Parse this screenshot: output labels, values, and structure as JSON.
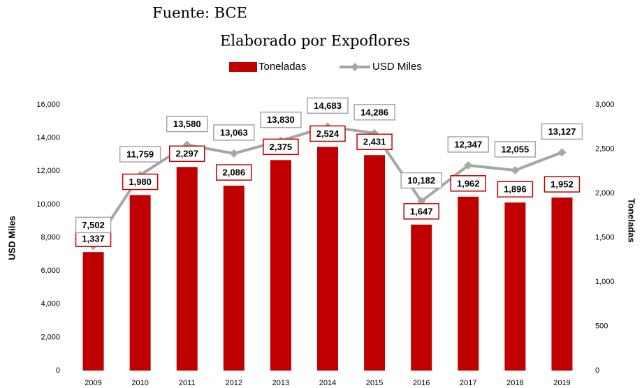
{
  "chart_data": {
    "type": "bar_line",
    "title": "Fuente: BCE",
    "subtitle": "Elaborado por Expoflores",
    "categories": [
      "2009",
      "2010",
      "2011",
      "2012",
      "2013",
      "2014",
      "2015",
      "2016",
      "2017",
      "2018",
      "2019"
    ],
    "series": [
      {
        "name": "Toneladas",
        "type": "bar",
        "axis": "y2",
        "color": "#c00000",
        "values": [
          1337,
          1980,
          2297,
          2086,
          2375,
          2524,
          2431,
          1647,
          1962,
          1896,
          1952
        ],
        "value_labels": [
          "1,337",
          "1,980",
          "2,297",
          "2,086",
          "2,375",
          "2,524",
          "2,431",
          "1,647",
          "1,962",
          "1,896",
          "1,952"
        ]
      },
      {
        "name": "USD Miles",
        "type": "line",
        "axis": "y",
        "color": "#a6a6a6",
        "values": [
          7502,
          11759,
          13580,
          13063,
          13830,
          14683,
          14286,
          10182,
          12347,
          12055,
          13127
        ],
        "value_labels": [
          "7,502",
          "11,759",
          "13,580",
          "13,063",
          "13,830",
          "14,683",
          "14,286",
          "10,182",
          "12,347",
          "12,055",
          "13,127"
        ]
      }
    ],
    "ylabel": "USD Miles",
    "y2label": "Toneladas",
    "ylim": [
      0,
      16000
    ],
    "yticks": [
      0,
      {
        "value": 2000,
        "label": "2,000"
      },
      {
        "value": 4000,
        "label": "4,000"
      },
      {
        "value": 6000,
        "label": "6,000"
      },
      {
        "value": 8000,
        "label": "8,000"
      },
      {
        "value": 10000,
        "label": "10,000"
      },
      {
        "value": 12000,
        "label": "12,000"
      },
      {
        "value": 14000,
        "label": "14,000"
      },
      {
        "value": 16000,
        "label": "16,000"
      }
    ],
    "y2lim": [
      0,
      3000
    ],
    "y2ticks": [
      0,
      500,
      {
        "value": 1000,
        "label": "1,000"
      },
      {
        "value": 1500,
        "label": "1,500"
      },
      {
        "value": 2000,
        "label": "2,000"
      },
      {
        "value": 2500,
        "label": "2,500"
      },
      {
        "value": 3000,
        "label": "3,000"
      }
    ],
    "legend": "top"
  }
}
